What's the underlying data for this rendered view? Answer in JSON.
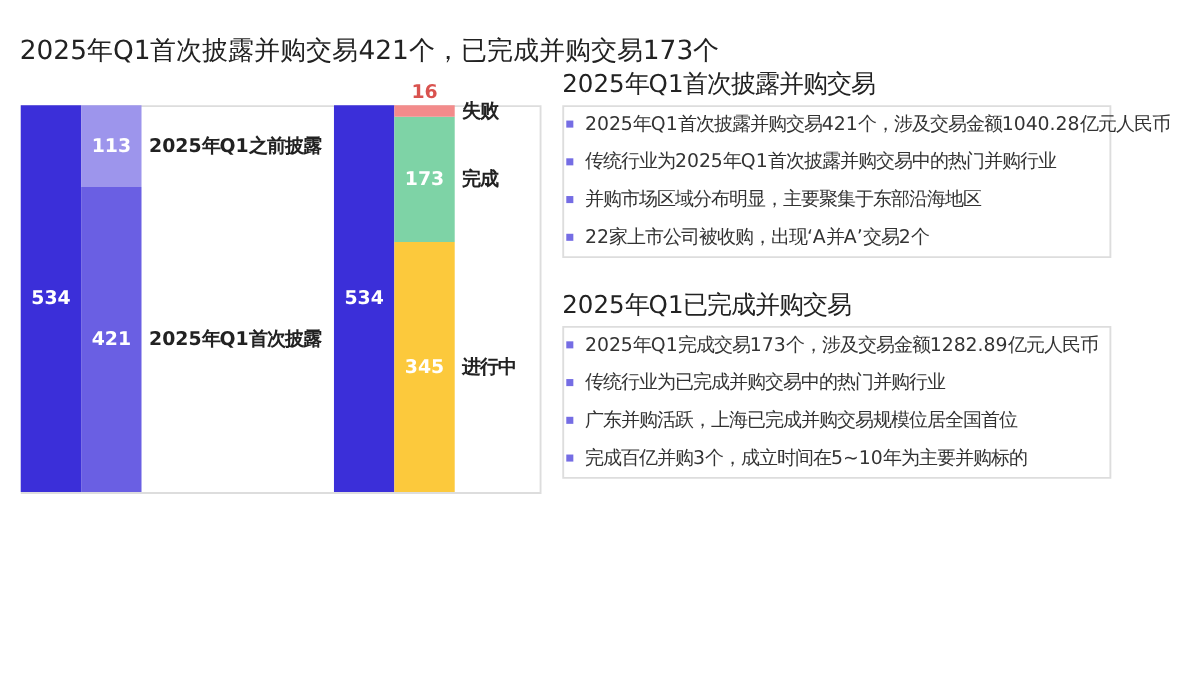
{
  "chart_data": [
    {
      "type": "bar",
      "title": "2025年Q1首次披露并购交易421个，已完成并购交易173个",
      "categories": [
        null,
        null,
        null,
        null
      ],
      "stacked": true,
      "data_labels": true,
      "ylim": [
        0,
        534
      ],
      "tick_labels": false,
      "legend": false,
      "series": [
        {
          "color": "#3b2fd9",
          "values": [
            534,
            null,
            534,
            null
          ]
        },
        {
          "name": "2025年Q1首次披露",
          "color": "#6a5fe3",
          "values": [
            null,
            421,
            null,
            null
          ]
        },
        {
          "name": "2025年Q1之前披露",
          "color": "#9d95ec",
          "values": [
            null,
            113,
            null,
            null
          ]
        },
        {
          "name": "进行中",
          "color": "#fcc93c",
          "values": [
            null,
            null,
            null,
            345
          ]
        },
        {
          "name": "完成",
          "color": "#7ed3a6",
          "values": [
            null,
            null,
            null,
            173
          ]
        },
        {
          "name": "失败",
          "color": "#f38b8b",
          "values": [
            null,
            null,
            null,
            16
          ]
        }
      ]
    },
    {
      "type": "other",
      "title": "2025年Q1首次披露并购交易",
      "annotations": [
        "2025年Q1首次披露并购交易421个，涉及交易金额1040.28亿元人民币",
        "传统行业为2025年Q1首次披露并购交易中的热门并购行业",
        "并购市场区域分布明显，主要聚集于东部沿海地区",
        "22家上市公司被收购，出现‘A并A’交易2个"
      ]
    },
    {
      "type": "other",
      "title": "2025年Q1已完成并购交易",
      "annotations": [
        "2025年Q1完成交易173个，涉及交易金额1282.89亿元人民币",
        "传统行业为已完成并购交易中的热门并购行业",
        "广东并购活跃，上海已完成并购交易规模位居全国首位",
        "完成百亿并购3个，成立时间在5~10年为主要并购标的"
      ]
    }
  ]
}
